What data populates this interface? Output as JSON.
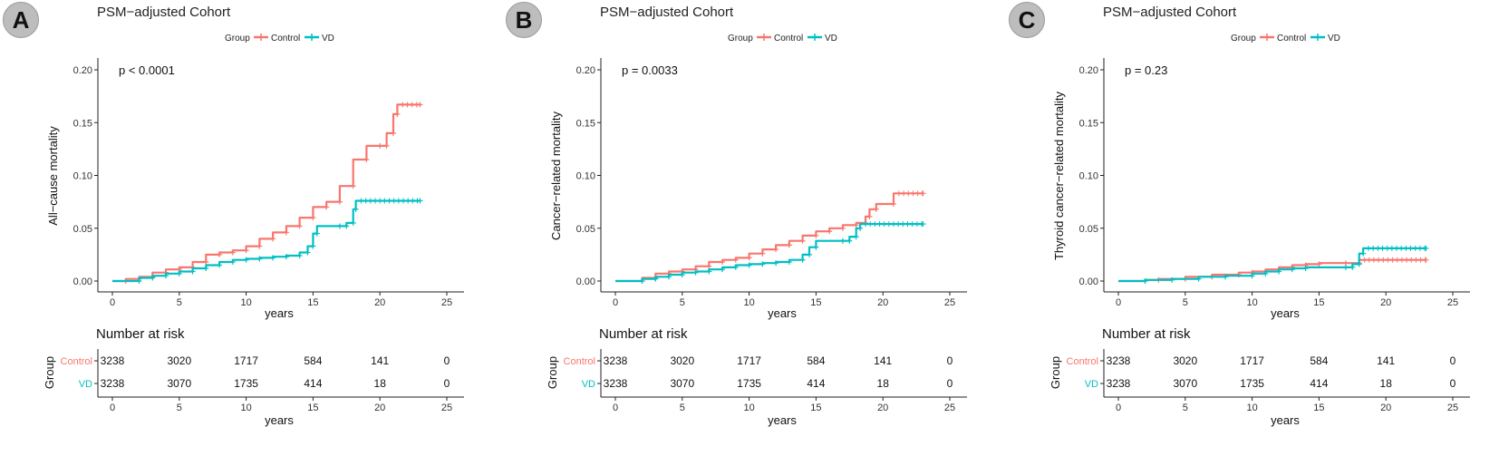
{
  "colors": {
    "control": "#F8766D",
    "vd": "#00BFC4",
    "axis": "#222222"
  },
  "chart_data": [
    {
      "type": "line",
      "panel": "A",
      "title": "PSM−adjusted Cohort",
      "legend_title": "Group",
      "legend": [
        "Control",
        "VD"
      ],
      "pvalue": "p < 0.0001",
      "ylabel": "All−cause mortality",
      "xlabel": "years",
      "xlim": [
        0,
        25
      ],
      "ylim": [
        0,
        0.2
      ],
      "xticks": [
        "0",
        "5",
        "10",
        "15",
        "20",
        "25"
      ],
      "yticks": [
        "0.00",
        "0.05",
        "0.10",
        "0.15",
        "0.20"
      ],
      "series": [
        {
          "name": "Control",
          "points": [
            [
              0,
              0
            ],
            [
              1,
              0.002
            ],
            [
              2,
              0.004
            ],
            [
              3,
              0.008
            ],
            [
              4,
              0.011
            ],
            [
              5,
              0.013
            ],
            [
              6,
              0.018
            ],
            [
              7,
              0.025
            ],
            [
              8,
              0.027
            ],
            [
              9,
              0.029
            ],
            [
              10,
              0.033
            ],
            [
              11,
              0.04
            ],
            [
              12,
              0.046
            ],
            [
              13,
              0.052
            ],
            [
              14,
              0.06
            ],
            [
              15,
              0.07
            ],
            [
              16,
              0.075
            ],
            [
              17,
              0.09
            ],
            [
              18,
              0.115
            ],
            [
              19,
              0.128
            ],
            [
              20,
              0.128
            ],
            [
              20.5,
              0.14
            ],
            [
              21,
              0.158
            ],
            [
              21.3,
              0.167
            ],
            [
              23,
              0.167
            ]
          ]
        },
        {
          "name": "VD",
          "points": [
            [
              0,
              0
            ],
            [
              2,
              0.003
            ],
            [
              3,
              0.005
            ],
            [
              4,
              0.007
            ],
            [
              5,
              0.009
            ],
            [
              6,
              0.012
            ],
            [
              7,
              0.015
            ],
            [
              8,
              0.018
            ],
            [
              9,
              0.02
            ],
            [
              10,
              0.021
            ],
            [
              11,
              0.022
            ],
            [
              12,
              0.023
            ],
            [
              13,
              0.024
            ],
            [
              14,
              0.027
            ],
            [
              14.6,
              0.033
            ],
            [
              15,
              0.045
            ],
            [
              15.3,
              0.052
            ],
            [
              17,
              0.052
            ],
            [
              17.5,
              0.055
            ],
            [
              18,
              0.068
            ],
            [
              18.2,
              0.076
            ],
            [
              23,
              0.076
            ]
          ]
        }
      ],
      "risk_table": {
        "title": "Number at risk",
        "ylabel": "Group",
        "xlabel": "years",
        "rows": [
          {
            "name": "Control",
            "values": [
              "3238",
              "3020",
              "1717",
              "584",
              "141",
              "0"
            ]
          },
          {
            "name": "VD",
            "values": [
              "3238",
              "3070",
              "1735",
              "414",
              "18",
              "0"
            ]
          }
        ]
      }
    },
    {
      "type": "line",
      "panel": "B",
      "title": "PSM−adjusted Cohort",
      "legend_title": "Group",
      "legend": [
        "Control",
        "VD"
      ],
      "pvalue": "p = 0.0033",
      "ylabel": "Cancer−related mortality",
      "xlabel": "years",
      "xlim": [
        0,
        25
      ],
      "ylim": [
        0,
        0.2
      ],
      "xticks": [
        "0",
        "5",
        "10",
        "15",
        "20",
        "25"
      ],
      "yticks": [
        "0.00",
        "0.05",
        "0.10",
        "0.15",
        "0.20"
      ],
      "series": [
        {
          "name": "Control",
          "points": [
            [
              0,
              0
            ],
            [
              2,
              0.003
            ],
            [
              3,
              0.007
            ],
            [
              4,
              0.009
            ],
            [
              5,
              0.011
            ],
            [
              6,
              0.014
            ],
            [
              7,
              0.018
            ],
            [
              8,
              0.02
            ],
            [
              9,
              0.022
            ],
            [
              10,
              0.026
            ],
            [
              11,
              0.03
            ],
            [
              12,
              0.034
            ],
            [
              13,
              0.038
            ],
            [
              14,
              0.043
            ],
            [
              15,
              0.047
            ],
            [
              16,
              0.05
            ],
            [
              17,
              0.053
            ],
            [
              18,
              0.055
            ],
            [
              18.7,
              0.061
            ],
            [
              19,
              0.068
            ],
            [
              19.5,
              0.073
            ],
            [
              20.8,
              0.083
            ],
            [
              23,
              0.083
            ]
          ]
        },
        {
          "name": "VD",
          "points": [
            [
              0,
              0
            ],
            [
              2,
              0.002
            ],
            [
              3,
              0.004
            ],
            [
              4,
              0.006
            ],
            [
              5,
              0.008
            ],
            [
              6,
              0.009
            ],
            [
              7,
              0.011
            ],
            [
              8,
              0.013
            ],
            [
              9,
              0.015
            ],
            [
              10,
              0.016
            ],
            [
              11,
              0.017
            ],
            [
              12,
              0.018
            ],
            [
              13,
              0.02
            ],
            [
              14,
              0.025
            ],
            [
              14.5,
              0.032
            ],
            [
              15,
              0.038
            ],
            [
              17,
              0.038
            ],
            [
              17.5,
              0.042
            ],
            [
              18,
              0.05
            ],
            [
              18.3,
              0.054
            ],
            [
              23,
              0.054
            ]
          ]
        }
      ],
      "risk_table": {
        "title": "Number at risk",
        "ylabel": "Group",
        "xlabel": "years",
        "rows": [
          {
            "name": "Control",
            "values": [
              "3238",
              "3020",
              "1717",
              "584",
              "141",
              "0"
            ]
          },
          {
            "name": "VD",
            "values": [
              "3238",
              "3070",
              "1735",
              "414",
              "18",
              "0"
            ]
          }
        ]
      }
    },
    {
      "type": "line",
      "panel": "C",
      "title": "PSM−adjusted Cohort",
      "legend_title": "Group",
      "legend": [
        "Control",
        "VD"
      ],
      "pvalue": "p = 0.23",
      "ylabel": "Thyroid cancer−related mortality",
      "xlabel": "years",
      "xlim": [
        0,
        25
      ],
      "ylim": [
        0,
        0.2
      ],
      "xticks": [
        "0",
        "5",
        "10",
        "15",
        "20",
        "25"
      ],
      "yticks": [
        "0.00",
        "0.05",
        "0.10",
        "0.15",
        "0.20"
      ],
      "series": [
        {
          "name": "Control",
          "points": [
            [
              0,
              0
            ],
            [
              2,
              0.001
            ],
            [
              3,
              0.002
            ],
            [
              5,
              0.004
            ],
            [
              7,
              0.006
            ],
            [
              9,
              0.008
            ],
            [
              10,
              0.009
            ],
            [
              11,
              0.011
            ],
            [
              12,
              0.013
            ],
            [
              13,
              0.015
            ],
            [
              14,
              0.016
            ],
            [
              15,
              0.017
            ],
            [
              17,
              0.017
            ],
            [
              18,
              0.02
            ],
            [
              23,
              0.02
            ]
          ]
        },
        {
          "name": "VD",
          "points": [
            [
              0,
              0
            ],
            [
              2,
              0.001
            ],
            [
              4,
              0.002
            ],
            [
              6,
              0.004
            ],
            [
              8,
              0.005
            ],
            [
              10,
              0.007
            ],
            [
              11,
              0.009
            ],
            [
              12,
              0.011
            ],
            [
              13,
              0.012
            ],
            [
              14,
              0.013
            ],
            [
              17,
              0.013
            ],
            [
              17.5,
              0.016
            ],
            [
              18,
              0.026
            ],
            [
              18.3,
              0.031
            ],
            [
              23,
              0.031
            ]
          ]
        }
      ],
      "risk_table": {
        "title": "Number at risk",
        "ylabel": "Group",
        "xlabel": "years",
        "rows": [
          {
            "name": "Control",
            "values": [
              "3238",
              "3020",
              "1717",
              "584",
              "141",
              "0"
            ]
          },
          {
            "name": "VD",
            "values": [
              "3238",
              "3070",
              "1735",
              "414",
              "18",
              "0"
            ]
          }
        ]
      }
    }
  ]
}
